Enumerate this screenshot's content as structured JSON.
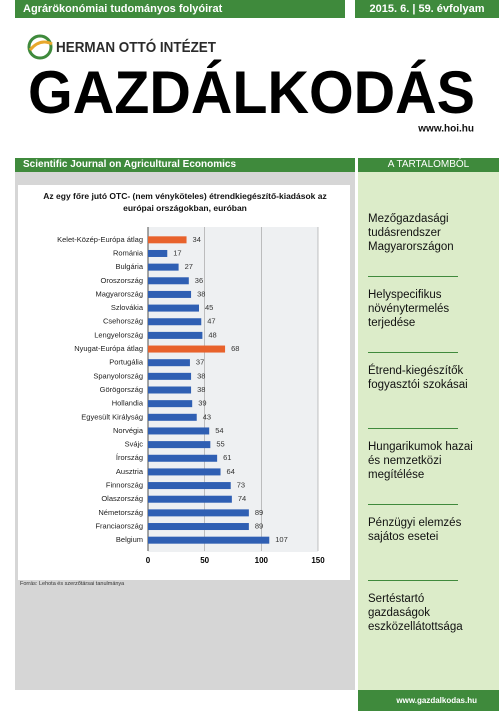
{
  "header": {
    "tagline": "Agrárökonómiai tudományos folyóirat",
    "issue": "2015. 6. | 59. évfolyam",
    "institute": "HERMAN OTTÓ INTÉZET",
    "title": "GAZDÁLKODÁS",
    "url": "www.hoi.hu",
    "subtitle": "Scientific Journal on Agricultural Economics",
    "contents_heading": "A TARTALOMBÓL"
  },
  "chart_data": {
    "type": "bar",
    "orientation": "horizontal",
    "title": "Az egy főre jutó OTC- (nem vényköteles) étrendkiegészítő-kiadások az európai országokban, euróban",
    "categories": [
      "Kelet-Közép-Európa átlag",
      "Románia",
      "Bulgária",
      "Oroszország",
      "Magyarország",
      "Szlovákia",
      "Csehország",
      "Lengyelország",
      "Nyugat-Európa átlag",
      "Portugália",
      "Spanyolország",
      "Görögország",
      "Hollandia",
      "Egyesült Királyság",
      "Norvégia",
      "Svájc",
      "Írország",
      "Ausztria",
      "Finnország",
      "Olaszország",
      "Németország",
      "Franciaország",
      "Belgium"
    ],
    "values": [
      34,
      17,
      27,
      36,
      38,
      45,
      47,
      48,
      68,
      37,
      38,
      38,
      39,
      43,
      54,
      55,
      61,
      64,
      73,
      74,
      89,
      89,
      107
    ],
    "colors": [
      "#e8622c",
      "#2f5fb3",
      "#2f5fb3",
      "#2f5fb3",
      "#2f5fb3",
      "#2f5fb3",
      "#2f5fb3",
      "#2f5fb3",
      "#e8622c",
      "#2f5fb3",
      "#2f5fb3",
      "#2f5fb3",
      "#2f5fb3",
      "#2f5fb3",
      "#2f5fb3",
      "#2f5fb3",
      "#2f5fb3",
      "#2f5fb3",
      "#2f5fb3",
      "#2f5fb3",
      "#2f5fb3",
      "#2f5fb3",
      "#2f5fb3"
    ],
    "xlim": [
      0,
      150
    ],
    "xticks": [
      0,
      50,
      100,
      150
    ],
    "grid": true,
    "source": "Forrás: Lehota és szerzőtársai tanulmánya"
  },
  "contents": [
    "Mezőgazdasági tudásrendszer Magyarországon",
    "Helyspecifikus növénytermelés terjedése",
    "Étrend-kiegészítők fogyasztói szokásai",
    "Hungarikumok hazai és nemzetközi megítélése",
    "Pénzügyi elemzés sajátos esetei",
    "Sertéstartó gazdaságok eszközellátottsága"
  ],
  "footer": {
    "url": "www.gazdalkodas.hu"
  }
}
